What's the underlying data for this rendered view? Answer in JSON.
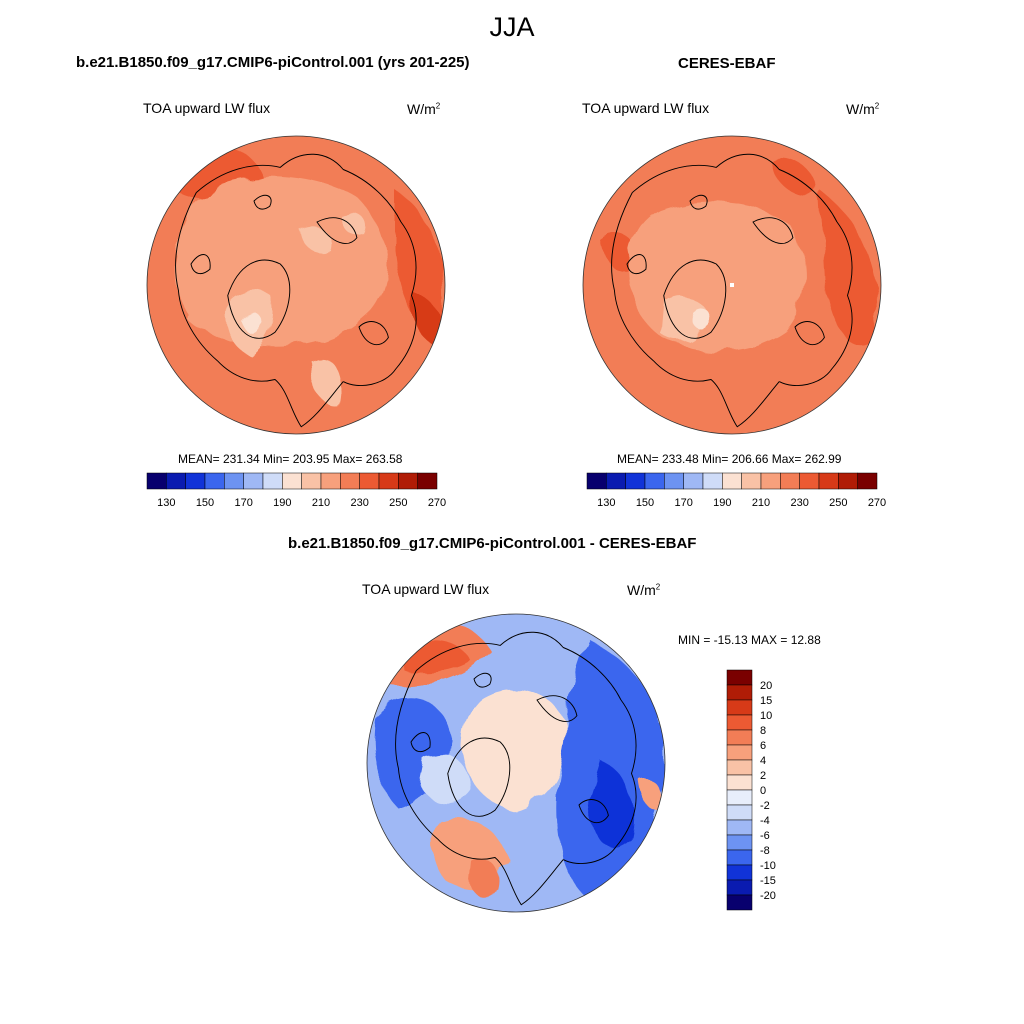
{
  "season": "JJA",
  "units": {
    "base": "W/m",
    "exp": "2"
  },
  "model_panel": {
    "title": "b.e21.B1850.f09_g17.CMIP6-piControl.001 (yrs 201-225)",
    "variable": "TOA upward LW flux",
    "stats": "MEAN= 231.34  Min= 203.95  Max= 263.58"
  },
  "obs_panel": {
    "title": "CERES-EBAF",
    "variable": "TOA upward LW flux",
    "stats": "MEAN= 233.48  Min= 206.66  Max= 262.99"
  },
  "diff_panel": {
    "title": "b.e21.B1850.f09_g17.CMIP6-piControl.001 - CERES-EBAF",
    "variable": "TOA upward LW flux",
    "stats": "MIN = -15.13 MAX =  12.88"
  },
  "colorbar_main": {
    "labels": [
      "130",
      "150",
      "170",
      "190",
      "210",
      "230",
      "250",
      "270"
    ],
    "colors": [
      "#08006e",
      "#0a1bb0",
      "#1133d8",
      "#3b66ee",
      "#6d93f2",
      "#9fb8f5",
      "#cfdcf8",
      "#fbe1d2",
      "#f9c2a6",
      "#f7a07c",
      "#f27d56",
      "#ec5a33",
      "#d73a18",
      "#b01c06",
      "#7a0000"
    ]
  },
  "colorbar_diff": {
    "labels": [
      "20",
      "15",
      "10",
      "8",
      "6",
      "4",
      "2",
      "0",
      "-2",
      "-4",
      "-6",
      "-8",
      "-10",
      "-15",
      "-20"
    ],
    "colors": [
      "#7a0000",
      "#b01c06",
      "#d73a18",
      "#ec5a33",
      "#f27d56",
      "#f7a07c",
      "#f9c2a6",
      "#fbe1d2",
      "#e8eefb",
      "#cfdcf8",
      "#9fb8f5",
      "#6d93f2",
      "#3b66ee",
      "#1133d8",
      "#0a1bb0",
      "#08006e"
    ]
  }
}
